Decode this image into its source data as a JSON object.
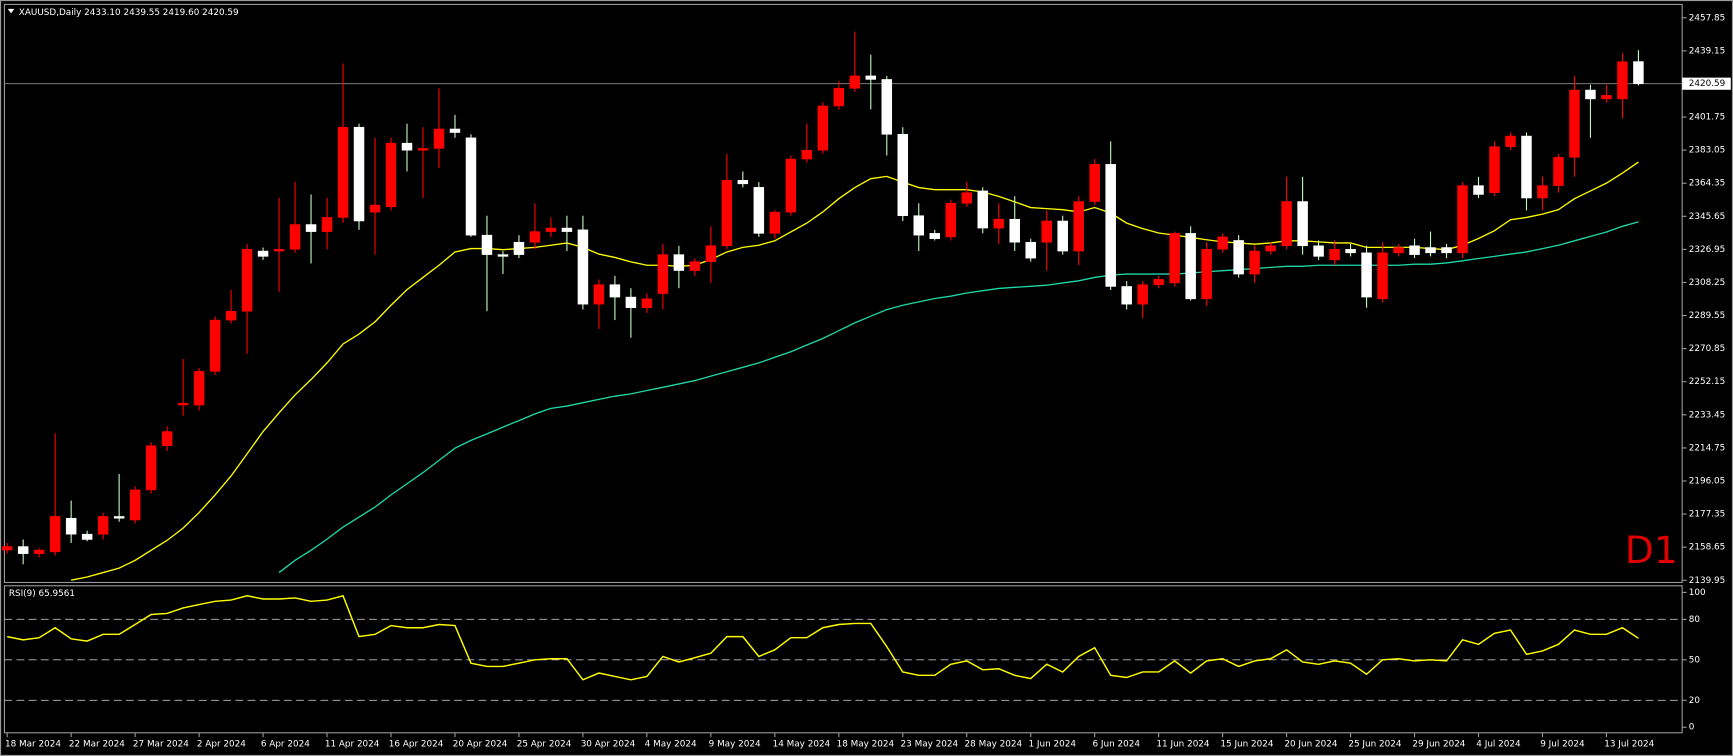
{
  "chart_data": [
    {
      "type": "candlestick",
      "header": "XAUUSD,Daily",
      "header_values": [
        {
          "value": 2433.1,
          "label": "2433.10"
        },
        {
          "value": 2439.55,
          "label": "2439.55"
        },
        {
          "value": 2419.6,
          "label": "2419.60"
        },
        {
          "value": 2420.59,
          "label": "2420.59"
        }
      ],
      "timeframe": "D1",
      "up_color": "#ff0000",
      "down_color": "#ffffff",
      "wick_down_color": "#b8ffb8",
      "ylim": [
        2138.7,
        2465.4
      ],
      "yticks": [
        2139.95,
        2158.65,
        2177.35,
        2196.05,
        2214.75,
        2233.45,
        2252.15,
        2270.85,
        2289.55,
        2308.25,
        2326.95,
        2345.65,
        2364.35,
        2383.05,
        2401.75,
        2439.15,
        2457.85
      ],
      "price_line": {
        "value": 2420.59,
        "label": "2420.59"
      },
      "grid": false,
      "open": [
        2157,
        2159,
        2155,
        2156,
        2175,
        2166,
        2166,
        2176,
        2174,
        2191,
        2216,
        2239,
        2239,
        2258,
        2287,
        2292,
        2326,
        2326,
        2327,
        2341,
        2337,
        2345,
        2396,
        2348,
        2351,
        2387,
        2383,
        2384,
        2395,
        2390,
        2335,
        2324,
        2331,
        2331,
        2337,
        2339,
        2338,
        2296,
        2307,
        2300,
        2294,
        2302,
        2324,
        2315,
        2320,
        2329,
        2366,
        2362,
        2336,
        2348,
        2378,
        2383,
        2408,
        2418,
        2425,
        2423,
        2392,
        2346,
        2336,
        2334,
        2353,
        2360,
        2339,
        2344,
        2331,
        2331,
        2343,
        2326,
        2354,
        2375,
        2306,
        2296,
        2307,
        2308,
        2336,
        2299,
        2327,
        2332,
        2313,
        2326,
        2329,
        2354,
        2329,
        2321,
        2327,
        2325,
        2299,
        2325,
        2329,
        2328,
        2328,
        2325,
        2363,
        2359,
        2385,
        2391,
        2356,
        2363,
        2379,
        2417,
        2412,
        2412,
        2433.1
      ],
      "high": [
        2161,
        2163,
        2158,
        2223,
        2185,
        2168,
        2178,
        2200,
        2193,
        2218,
        2227,
        2265,
        2260,
        2289,
        2304,
        2330,
        2328,
        2356,
        2365,
        2358,
        2356,
        2432,
        2398,
        2390,
        2390,
        2398,
        2396,
        2418,
        2403,
        2392,
        2346,
        2326,
        2335,
        2353,
        2345,
        2346,
        2346,
        2310,
        2312,
        2305,
        2302,
        2330,
        2329,
        2322,
        2340,
        2381,
        2371,
        2365,
        2349,
        2380,
        2398,
        2410,
        2422,
        2450,
        2437,
        2425,
        2396,
        2353,
        2338,
        2355,
        2365,
        2362,
        2353,
        2357,
        2333,
        2349,
        2346,
        2357,
        2378,
        2388,
        2309,
        2309,
        2312,
        2337,
        2340,
        2331,
        2336,
        2335,
        2329,
        2331,
        2368,
        2368,
        2332,
        2332,
        2330,
        2329,
        2331,
        2330,
        2333,
        2337,
        2330,
        2365,
        2368,
        2388,
        2393,
        2393,
        2368,
        2381,
        2425,
        2420,
        2420,
        2438,
        2439.55
      ],
      "low": [
        2155,
        2149,
        2153,
        2154,
        2161,
        2162,
        2163,
        2173,
        2172,
        2189,
        2213,
        2233,
        2236,
        2256,
        2285,
        2268,
        2321,
        2303,
        2325,
        2319,
        2327,
        2342,
        2338,
        2324,
        2349,
        2371,
        2356,
        2373,
        2390,
        2334,
        2292,
        2313,
        2322,
        2327,
        2334,
        2326,
        2293,
        2282,
        2287,
        2277,
        2291,
        2293,
        2305,
        2312,
        2308,
        2327,
        2362,
        2334,
        2333,
        2346,
        2376,
        2381,
        2406,
        2416,
        2406,
        2380,
        2343,
        2326,
        2332,
        2332,
        2351,
        2336,
        2330,
        2326,
        2320,
        2315,
        2324,
        2318,
        2352,
        2304,
        2293,
        2288,
        2305,
        2306,
        2298,
        2295,
        2325,
        2311,
        2308,
        2324,
        2327,
        2324,
        2321,
        2318,
        2323,
        2294,
        2297,
        2323,
        2322,
        2323,
        2322,
        2322,
        2356,
        2357,
        2383,
        2349,
        2349,
        2359,
        2368,
        2390,
        2410,
        2401,
        2419.6
      ],
      "close": [
        2159,
        2155,
        2157,
        2176,
        2166,
        2163,
        2176,
        2175,
        2191,
        2216,
        2224,
        2240,
        2258,
        2287,
        2292,
        2327,
        2323,
        2327,
        2341,
        2337,
        2345,
        2396,
        2343,
        2352,
        2387,
        2383,
        2384,
        2395,
        2393,
        2335,
        2324,
        2323,
        2324,
        2337,
        2339,
        2337,
        2296,
        2307,
        2300,
        2294,
        2299,
        2324,
        2315,
        2320,
        2329,
        2366,
        2364,
        2336,
        2348,
        2378,
        2383,
        2408,
        2418,
        2425,
        2423,
        2392,
        2346,
        2335,
        2333,
        2353,
        2359,
        2339,
        2344,
        2331,
        2322,
        2343,
        2326,
        2354,
        2375,
        2306,
        2296,
        2307,
        2310,
        2336,
        2299,
        2327,
        2334,
        2313,
        2326,
        2329,
        2354,
        2329,
        2323,
        2327,
        2325,
        2300,
        2325,
        2328,
        2324,
        2325,
        2325,
        2363,
        2358,
        2385,
        2391,
        2356,
        2363,
        2379,
        2417,
        2412,
        2414,
        2433,
        2420.59
      ],
      "lines": [
        {
          "color": "#ffff00",
          "values": [
            null,
            null,
            null,
            null,
            2140.0,
            2141.8,
            2144.3,
            2146.8,
            2151.2,
            2156.9,
            2162.5,
            2169.4,
            2178.2,
            2188.2,
            2198.9,
            2211.4,
            2224.0,
            2234.6,
            2244.7,
            2253.4,
            2262.8,
            2273.5,
            2279.1,
            2286.0,
            2295.4,
            2304.2,
            2311.1,
            2318.0,
            2325.5,
            2327.4,
            2327.4,
            2326.8,
            2327.4,
            2328.1,
            2329.3,
            2330.6,
            2328.1,
            2324.3,
            2322.4,
            2319.9,
            2318.0,
            2318.0,
            2317.4,
            2318.0,
            2321.2,
            2325.5,
            2328.1,
            2329.3,
            2331.8,
            2336.8,
            2341.8,
            2348.1,
            2355.6,
            2361.9,
            2366.9,
            2368.2,
            2365.0,
            2361.9,
            2360.7,
            2360.7,
            2360.7,
            2359.4,
            2356.9,
            2353.8,
            2350.6,
            2350.0,
            2349.4,
            2348.1,
            2350.6,
            2347.5,
            2341.8,
            2338.7,
            2336.2,
            2335.0,
            2333.7,
            2332.4,
            2331.2,
            2330.6,
            2329.9,
            2330.6,
            2331.8,
            2331.8,
            2331.2,
            2330.6,
            2330.6,
            2328.1,
            2328.1,
            2328.1,
            2328.1,
            2327.4,
            2326.8,
            2329.3,
            2333.1,
            2337.5,
            2343.7,
            2345.0,
            2346.9,
            2349.4,
            2355.6,
            2360.0,
            2364.4,
            2370.1,
            2376.3
          ]
        },
        {
          "color": "#1fd8a8",
          "values": [
            null,
            null,
            null,
            null,
            null,
            null,
            null,
            null,
            null,
            null,
            null,
            null,
            null,
            null,
            null,
            null,
            null,
            2144.3,
            2151.2,
            2156.9,
            2163.2,
            2170.0,
            2175.7,
            2181.3,
            2188.2,
            2194.5,
            2200.8,
            2207.7,
            2214.6,
            2219.0,
            2222.7,
            2226.5,
            2230.2,
            2234.0,
            2237.1,
            2238.4,
            2240.3,
            2242.2,
            2244.0,
            2245.3,
            2247.2,
            2249.0,
            2250.9,
            2252.8,
            2255.3,
            2257.8,
            2260.3,
            2262.8,
            2266.0,
            2269.1,
            2272.9,
            2276.6,
            2281.0,
            2285.4,
            2289.2,
            2292.9,
            2295.4,
            2297.3,
            2299.2,
            2300.5,
            2302.3,
            2303.6,
            2304.9,
            2305.5,
            2306.1,
            2306.7,
            2308.0,
            2309.2,
            2311.1,
            2312.4,
            2313.0,
            2313.0,
            2313.0,
            2313.0,
            2313.6,
            2314.3,
            2314.9,
            2315.5,
            2316.1,
            2316.8,
            2317.4,
            2317.4,
            2318.0,
            2318.0,
            2318.0,
            2318.0,
            2318.0,
            2318.0,
            2318.6,
            2318.6,
            2319.3,
            2320.5,
            2321.8,
            2323.0,
            2324.3,
            2325.5,
            2327.4,
            2329.3,
            2331.8,
            2334.3,
            2336.8,
            2340.0,
            2342.5
          ]
        }
      ]
    },
    {
      "type": "line",
      "title": "RSI(9) 65.9561",
      "color": "#ffff00",
      "ylim": [
        -4.1,
        104.9
      ],
      "yticks": [
        0,
        20,
        50,
        80,
        100
      ],
      "levels": [
        20,
        50,
        80
      ],
      "categories": [
        "18 Mar 2024",
        null,
        null,
        null,
        "22 Mar 2024",
        null,
        null,
        null,
        "27 Mar 2024",
        null,
        null,
        null,
        "2 Apr 2024",
        null,
        null,
        null,
        "6 Apr 2024",
        null,
        null,
        null,
        "11 Apr 2024",
        null,
        null,
        null,
        "16 Apr 2024",
        null,
        null,
        null,
        "20 Apr 2024",
        null,
        null,
        null,
        "25 Apr 2024",
        null,
        null,
        null,
        "30 Apr 2024",
        null,
        null,
        null,
        "4 May 2024",
        null,
        null,
        null,
        "9 May 2024",
        null,
        null,
        null,
        "14 May 2024",
        null,
        null,
        null,
        "18 May 2024",
        null,
        null,
        null,
        "23 May 2024",
        null,
        null,
        null,
        "28 May 2024",
        null,
        null,
        null,
        "1 Jun 2024",
        null,
        null,
        null,
        "6 Jun 2024",
        null,
        null,
        null,
        "11 Jun 2024",
        null,
        null,
        null,
        "15 Jun 2024",
        null,
        null,
        null,
        "20 Jun 2024",
        null,
        null,
        null,
        "25 Jun 2024",
        null,
        null,
        null,
        "29 Jun 2024",
        null,
        null,
        null,
        "4 Jul 2024",
        null,
        null,
        null,
        "9 Jul 2024",
        null,
        null,
        null,
        "13 Jul 2024",
        null,
        null
      ],
      "values": [
        67.2,
        64.8,
        66.4,
        73.8,
        65.6,
        63.9,
        68.9,
        68.9,
        76.2,
        83.6,
        84.4,
        88.5,
        91.0,
        93.4,
        94.3,
        97.5,
        95.1,
        95.1,
        95.9,
        93.4,
        94.3,
        97.5,
        67.2,
        68.9,
        75.4,
        73.8,
        73.8,
        76.2,
        75.4,
        47.5,
        45.1,
        45.1,
        47.5,
        50.0,
        50.8,
        50.8,
        35.2,
        40.2,
        37.7,
        35.2,
        37.7,
        52.5,
        48.4,
        51.6,
        54.9,
        67.2,
        67.2,
        52.5,
        57.4,
        66.4,
        66.4,
        73.8,
        76.2,
        77.0,
        77.0,
        59.8,
        41.0,
        38.5,
        38.5,
        46.7,
        49.2,
        42.6,
        43.4,
        38.5,
        36.1,
        46.7,
        41.0,
        52.5,
        59.0,
        38.5,
        36.9,
        41.0,
        41.0,
        49.2,
        40.2,
        49.2,
        50.8,
        45.1,
        49.2,
        50.8,
        57.4,
        48.4,
        46.7,
        49.2,
        47.5,
        39.3,
        50.0,
        50.8,
        49.2,
        50.0,
        49.2,
        64.8,
        61.5,
        69.7,
        72.1,
        54.1,
        56.6,
        61.5,
        72.1,
        68.9,
        68.9,
        73.8,
        65.9561
      ]
    }
  ]
}
